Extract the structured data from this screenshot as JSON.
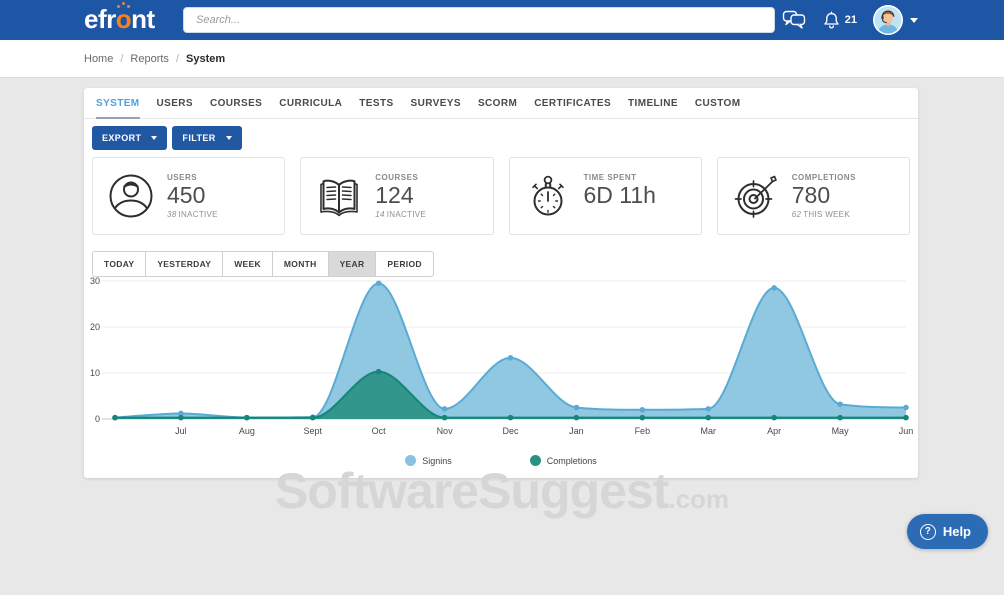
{
  "colors": {
    "header_blue": "#1d56a5",
    "logo_orange": "#f5821f",
    "action_blue": "#2158a4",
    "tab_active": "#4aa3df",
    "help_blue": "#2b6cb4",
    "page_bg": "#e8e8e8",
    "watermark_gray": "#d6d6d6"
  },
  "header": {
    "logo": {
      "prefix": "efr",
      "accent_letter": "o",
      "suffix": "nt"
    },
    "search_placeholder": "Search...",
    "notifications_count": "21"
  },
  "breadcrumb": {
    "separator": "/",
    "items": [
      "Home",
      "Reports",
      "System"
    ]
  },
  "tabs": [
    {
      "label": "SYSTEM",
      "active": true
    },
    {
      "label": "USERS"
    },
    {
      "label": "COURSES"
    },
    {
      "label": "CURRICULA"
    },
    {
      "label": "TESTS"
    },
    {
      "label": "SURVEYS"
    },
    {
      "label": "SCORM"
    },
    {
      "label": "CERTIFICATES"
    },
    {
      "label": "TIMELINE"
    },
    {
      "label": "CUSTOM"
    }
  ],
  "toolbar": {
    "export_label": "EXPORT",
    "filter_label": "FILTER"
  },
  "stats": [
    {
      "icon": "users-icon",
      "label": "USERS",
      "value": "450",
      "subtext_value": "38",
      "subtext_label": "INACTIVE"
    },
    {
      "icon": "courses-icon",
      "label": "COURSES",
      "value": "124",
      "subtext_value": "14",
      "subtext_label": "INACTIVE"
    },
    {
      "icon": "stopwatch-icon",
      "label": "TIME SPENT",
      "value": "6D 11h",
      "subtext_value": "",
      "subtext_label": ""
    },
    {
      "icon": "target-icon",
      "label": "COMPLETIONS",
      "value": "780",
      "subtext_value": "62",
      "subtext_label": "THIS WEEK"
    }
  ],
  "range_buttons": [
    {
      "label": "TODAY"
    },
    {
      "label": "YESTERDAY"
    },
    {
      "label": "WEEK"
    },
    {
      "label": "MONTH"
    },
    {
      "label": "YEAR",
      "active": true
    },
    {
      "label": "PERIOD"
    }
  ],
  "chart_data": {
    "type": "area",
    "x": [
      "",
      "Jul",
      "Aug",
      "Sept",
      "Oct",
      "Nov",
      "Dec",
      "Jan",
      "Feb",
      "Mar",
      "Apr",
      "May",
      "Jun"
    ],
    "series": [
      {
        "name": "Signins",
        "fill": "#87c3e0",
        "stroke": "#5aabd4",
        "values": [
          0.3,
          1.2,
          0.3,
          0.4,
          29.5,
          2.2,
          13.3,
          2.5,
          2.0,
          2.2,
          28.5,
          3.2,
          2.5
        ]
      },
      {
        "name": "Completions",
        "fill": "#2a9184",
        "stroke": "#16857a",
        "values": [
          0.3,
          0.3,
          0.3,
          0.3,
          10.3,
          0.3,
          0.3,
          0.3,
          0.3,
          0.3,
          0.3,
          0.3,
          0.3
        ]
      }
    ],
    "ylim": [
      0,
      30
    ],
    "yticks": [
      0,
      10,
      20,
      30
    ],
    "grid": true,
    "legend_position": "bottom"
  },
  "watermark": {
    "text": "SoftwareSuggest",
    "suffix": ".com"
  },
  "help_button": {
    "icon": "?",
    "label": "Help"
  }
}
